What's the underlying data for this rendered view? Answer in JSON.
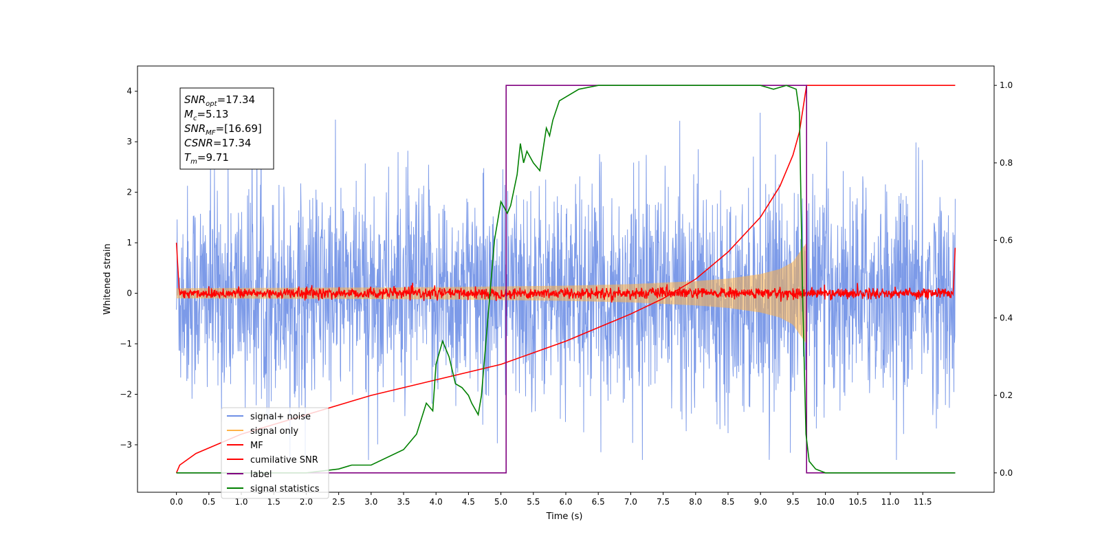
{
  "chart_data": {
    "type": "line",
    "title": "",
    "xlabel": "Time (s)",
    "ylabel": "Whitened strain",
    "y2label": "",
    "xlim": [
      -0.6,
      12.6
    ],
    "ylim": [
      -3.94,
      4.5
    ],
    "y2lim": [
      -0.05,
      1.05
    ],
    "x_ticks": [
      0.0,
      0.5,
      1.0,
      1.5,
      2.0,
      2.5,
      3.0,
      3.5,
      4.0,
      4.5,
      5.0,
      5.5,
      6.0,
      6.5,
      7.0,
      7.5,
      8.0,
      8.5,
      9.0,
      9.5,
      10.0,
      10.5,
      11.0,
      11.5
    ],
    "x_tick_labels": [
      "0.0",
      "0.5",
      "1.0",
      "1.5",
      "2.0",
      "2.5",
      "3.0",
      "3.5",
      "4.0",
      "4.5",
      "5.0",
      "5.5",
      "6.0",
      "6.5",
      "7.0",
      "7.5",
      "8.0",
      "8.5",
      "9.0",
      "9.5",
      "10.0",
      "10.5",
      "11.0",
      "11.5"
    ],
    "y_ticks": [
      -3,
      -2,
      -1,
      0,
      1,
      2,
      3,
      4
    ],
    "y_tick_labels": [
      "−3",
      "−2",
      "−1",
      "0",
      "1",
      "2",
      "3",
      "4"
    ],
    "y2_ticks": [
      0.0,
      0.2,
      0.4,
      0.6,
      0.8,
      1.0
    ],
    "y2_tick_labels": [
      "0.0",
      "0.2",
      "0.4",
      "0.6",
      "0.8",
      "1.0"
    ],
    "grid": false,
    "legend_position": "lower-left",
    "info_box": [
      {
        "sym": "SNR",
        "sub": "opt",
        "rest": "=17.34"
      },
      {
        "sym": "M",
        "sub": "c",
        "rest": "=5.13"
      },
      {
        "sym": "SNR",
        "sub": "MF",
        "rest": "=[16.69]"
      },
      {
        "sym": "CSNR",
        "sub": "",
        "rest": "=17.34"
      },
      {
        "sym": "T",
        "sub": "m",
        "rest": "=9.71"
      }
    ],
    "series": [
      {
        "name": "signal+ noise",
        "color": "#6e8fe6",
        "axis": "left",
        "kind": "noise",
        "x_range": [
          0.0,
          12.0
        ],
        "envelope": [
          -3.3,
          4.0
        ]
      },
      {
        "name": "signal only",
        "color": "#ffb347",
        "axis": "left",
        "kind": "chirp",
        "x_range": [
          0.0,
          9.71
        ],
        "envelope_x": [
          0.0,
          2.0,
          4.0,
          6.0,
          7.0,
          8.0,
          8.5,
          9.0,
          9.3,
          9.5,
          9.65,
          9.71
        ],
        "envelope_y": [
          0.1,
          0.11,
          0.12,
          0.15,
          0.18,
          0.24,
          0.29,
          0.38,
          0.48,
          0.62,
          0.9,
          1.0
        ]
      },
      {
        "name": "MF",
        "color": "#ff0000",
        "axis": "left",
        "kind": "mf",
        "x_range": [
          0.0,
          12.0
        ],
        "level": 0.0,
        "spread": 0.12
      },
      {
        "name": "cumilative SNR",
        "color": "#ff0000",
        "axis": "right",
        "x": [
          0.0,
          0.05,
          0.3,
          1.0,
          2.0,
          3.0,
          4.0,
          5.0,
          6.0,
          7.0,
          7.5,
          8.0,
          8.5,
          9.0,
          9.3,
          9.5,
          9.6,
          9.71,
          12.0
        ],
        "y": [
          0.0,
          0.02,
          0.05,
          0.1,
          0.15,
          0.2,
          0.24,
          0.28,
          0.34,
          0.41,
          0.45,
          0.5,
          0.57,
          0.66,
          0.74,
          0.82,
          0.88,
          1.0,
          1.0
        ]
      },
      {
        "name": "label",
        "color": "#800080",
        "axis": "right",
        "x": [
          0.0,
          5.08,
          5.08,
          9.71,
          9.71,
          12.0
        ],
        "y": [
          0.0,
          0.0,
          1.0,
          1.0,
          0.0,
          0.0
        ]
      },
      {
        "name": "signal statistics",
        "color": "#008000",
        "axis": "right",
        "x": [
          0.0,
          0.5,
          1.0,
          2.0,
          2.5,
          2.7,
          3.0,
          3.5,
          3.7,
          3.85,
          3.95,
          4.0,
          4.1,
          4.2,
          4.3,
          4.4,
          4.5,
          4.55,
          4.65,
          4.7,
          4.8,
          4.9,
          5.0,
          5.1,
          5.15,
          5.2,
          5.25,
          5.3,
          5.35,
          5.4,
          5.5,
          5.6,
          5.7,
          5.75,
          5.8,
          5.9,
          6.0,
          6.2,
          6.5,
          7.0,
          7.5,
          8.0,
          8.5,
          9.0,
          9.2,
          9.4,
          9.55,
          9.6,
          9.65,
          9.7,
          9.75,
          9.85,
          10.0,
          11.0,
          12.0
        ],
        "y": [
          0.0,
          0.0,
          0.0,
          0.0,
          0.01,
          0.02,
          0.02,
          0.06,
          0.1,
          0.18,
          0.16,
          0.28,
          0.34,
          0.3,
          0.23,
          0.22,
          0.2,
          0.18,
          0.15,
          0.2,
          0.4,
          0.6,
          0.7,
          0.67,
          0.69,
          0.73,
          0.77,
          0.85,
          0.8,
          0.83,
          0.8,
          0.78,
          0.89,
          0.87,
          0.91,
          0.96,
          0.97,
          0.99,
          1.0,
          1.0,
          1.0,
          1.0,
          1.0,
          1.0,
          0.99,
          1.0,
          0.99,
          0.93,
          0.45,
          0.1,
          0.03,
          0.01,
          0.0,
          0.0,
          0.0
        ]
      }
    ]
  }
}
